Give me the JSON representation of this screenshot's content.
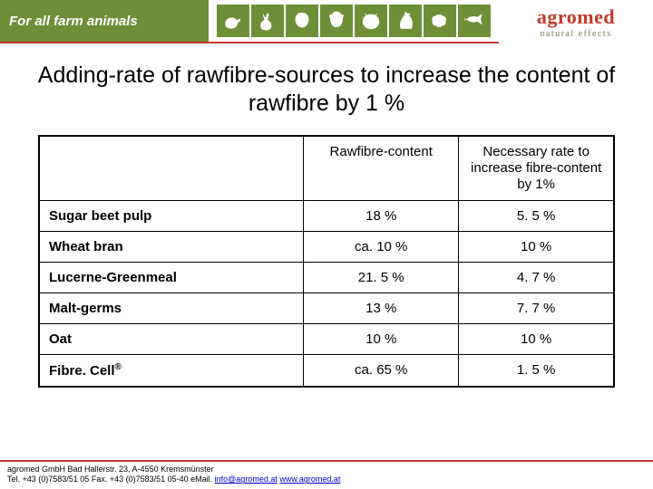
{
  "header": {
    "tagline": "For all farm animals",
    "brand": "agromed",
    "brand_sub": "natural effects",
    "accent_color": "#c13a2a",
    "bar_color": "#6e8f37"
  },
  "title": "Adding-rate of rawfibre-sources to increase the content of rawfibre  by 1 %",
  "table": {
    "columns": [
      "",
      "Rawfibre-content",
      "Necessary rate to increase fibre-content by 1%"
    ],
    "rows": [
      [
        "Sugar beet pulp",
        "18 %",
        "5. 5 %"
      ],
      [
        "Wheat bran",
        "ca. 10 %",
        "10 %"
      ],
      [
        "Lucerne-Greenmeal",
        "21. 5 %",
        "4. 7 %"
      ],
      [
        "Malt-germs",
        "13 %",
        "7. 7 %"
      ],
      [
        "Oat",
        "10 %",
        "10 %"
      ],
      [
        "Fibre. Cell®",
        "ca. 65 %",
        "1. 5 %"
      ]
    ]
  },
  "footer": {
    "line1": "agromed GmbH   Bad Hallerstr. 23, A-4550 Kremsmünster",
    "line2_a": "Tel. +43 (0)7583/51 05   Fax. +43 (0)7583/51 05-40   eMail. ",
    "email": "info@agromed.at",
    "sep": "   ",
    "web": "www.agromed.at"
  }
}
